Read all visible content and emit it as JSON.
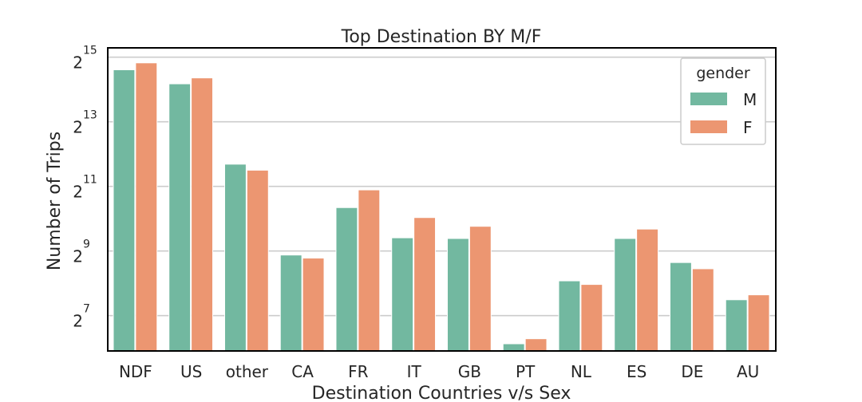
{
  "chart_data": {
    "type": "bar",
    "title": "Top Destination BY M/F",
    "xlabel": "Destination Countries v/s Sex",
    "ylabel": "Number of Trips",
    "categories": [
      "NDF",
      "US",
      "other",
      "CA",
      "FR",
      "IT",
      "GB",
      "PT",
      "NL",
      "ES",
      "DE",
      "AU"
    ],
    "series": [
      {
        "name": "M",
        "color": "#72b8a0",
        "values": [
          25000,
          18500,
          3300,
          470,
          1300,
          680,
          670,
          70,
          270,
          670,
          400,
          180
        ]
      },
      {
        "name": "F",
        "color": "#ec9671",
        "values": [
          29000,
          21000,
          2900,
          440,
          1900,
          1050,
          870,
          78,
          250,
          820,
          350,
          200
        ]
      }
    ],
    "y_scale": "log2",
    "ylim": [
      60,
      40000
    ],
    "y_ticks": [
      {
        "value": 128,
        "base": "2",
        "exponent": "7"
      },
      {
        "value": 512,
        "base": "2",
        "exponent": "9"
      },
      {
        "value": 2048,
        "base": "2",
        "exponent": "11"
      },
      {
        "value": 8192,
        "base": "2",
        "exponent": "13"
      },
      {
        "value": 32768,
        "base": "2",
        "exponent": "15"
      }
    ],
    "grid": "horizontal",
    "legend": {
      "title": "gender",
      "position": "top-right"
    }
  }
}
